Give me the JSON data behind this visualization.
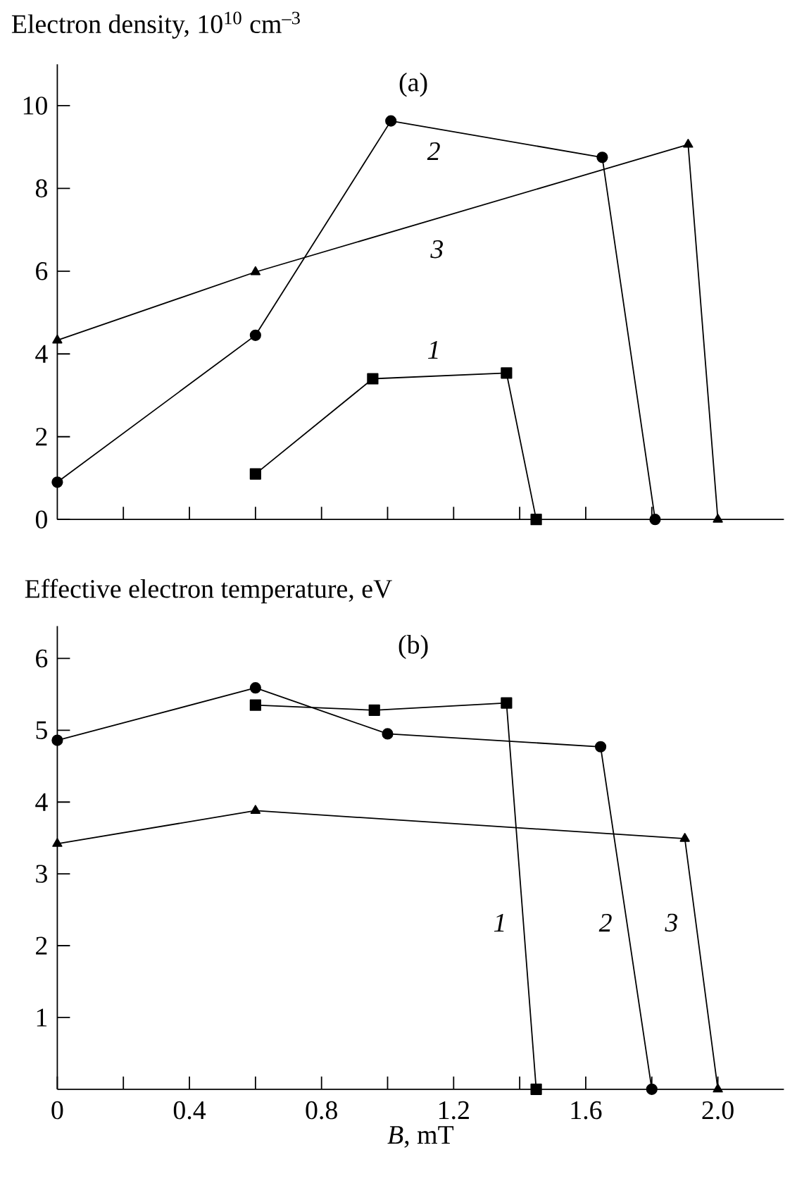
{
  "chart_data": [
    {
      "type": "line",
      "title": "Electron density, 10$^{10}$ cm$^{–3}$",
      "xlim": [
        0,
        2.2
      ],
      "ylim": [
        0,
        11
      ],
      "xticks": [
        {
          "value": 0.2,
          "label": null
        },
        {
          "value": 0.4,
          "label": null
        },
        {
          "value": 0.6,
          "label": null
        },
        {
          "value": 0.8,
          "label": null
        },
        {
          "value": 1.0,
          "label": null
        },
        {
          "value": 1.2,
          "label": null
        },
        {
          "value": 1.4,
          "label": null
        },
        {
          "value": 1.6,
          "label": null
        },
        {
          "value": 1.8,
          "label": null
        }
      ],
      "yticks": [
        0,
        2,
        4,
        6,
        8,
        10
      ],
      "tick_labels": "y",
      "series": [
        {
          "name": "1",
          "x": [
            0.6,
            0.955,
            1.36,
            1.45
          ],
          "values": [
            1.1,
            3.4,
            3.54,
            0
          ],
          "color": "#000000",
          "marker": "square"
        },
        {
          "name": "2",
          "x": [
            0,
            0.6,
            1.01,
            1.65,
            1.81
          ],
          "values": [
            0.9,
            4.45,
            9.63,
            8.75,
            0
          ],
          "color": "#000000",
          "marker": "circle"
        },
        {
          "name": "3",
          "x": [
            0,
            0.6,
            1.91,
            2.0
          ],
          "values": [
            4.33,
            5.98,
            9.06,
            0
          ],
          "color": "#000000",
          "marker": "triangle"
        }
      ],
      "annotations": [
        "(a)"
      ]
    },
    {
      "type": "line",
      "title": "Effective electron temperature, eV",
      "xlabel": "*B*, mT",
      "xlim": [
        0,
        2.2
      ],
      "ylim": [
        0,
        6.45
      ],
      "xticks": [
        0,
        {
          "value": 0.2,
          "label": null
        },
        0.4,
        {
          "value": 0.6,
          "label": null
        },
        0.8,
        {
          "value": 1.0,
          "label": null
        },
        1.2,
        {
          "value": 1.4,
          "label": null
        },
        1.6,
        {
          "value": 1.8,
          "label": null
        },
        {
          "value": 2.0,
          "label": "2.0"
        }
      ],
      "yticks": [
        1,
        2,
        3,
        4,
        5,
        6
      ],
      "series": [
        {
          "name": "1",
          "x": [
            0.6,
            0.96,
            1.36,
            1.45
          ],
          "values": [
            5.35,
            5.28,
            5.38,
            0
          ],
          "color": "#000000",
          "marker": "square"
        },
        {
          "name": "2",
          "x": [
            0,
            0.6,
            1.0,
            1.645,
            1.8
          ],
          "values": [
            4.86,
            5.59,
            4.95,
            4.77,
            0
          ],
          "color": "#000000",
          "marker": "circle"
        },
        {
          "name": "3",
          "x": [
            0,
            0.6,
            1.9,
            2.0
          ],
          "values": [
            3.42,
            3.88,
            3.49,
            0
          ],
          "color": "#000000",
          "marker": "triangle"
        }
      ],
      "annotations": [
        "(b)"
      ]
    }
  ]
}
